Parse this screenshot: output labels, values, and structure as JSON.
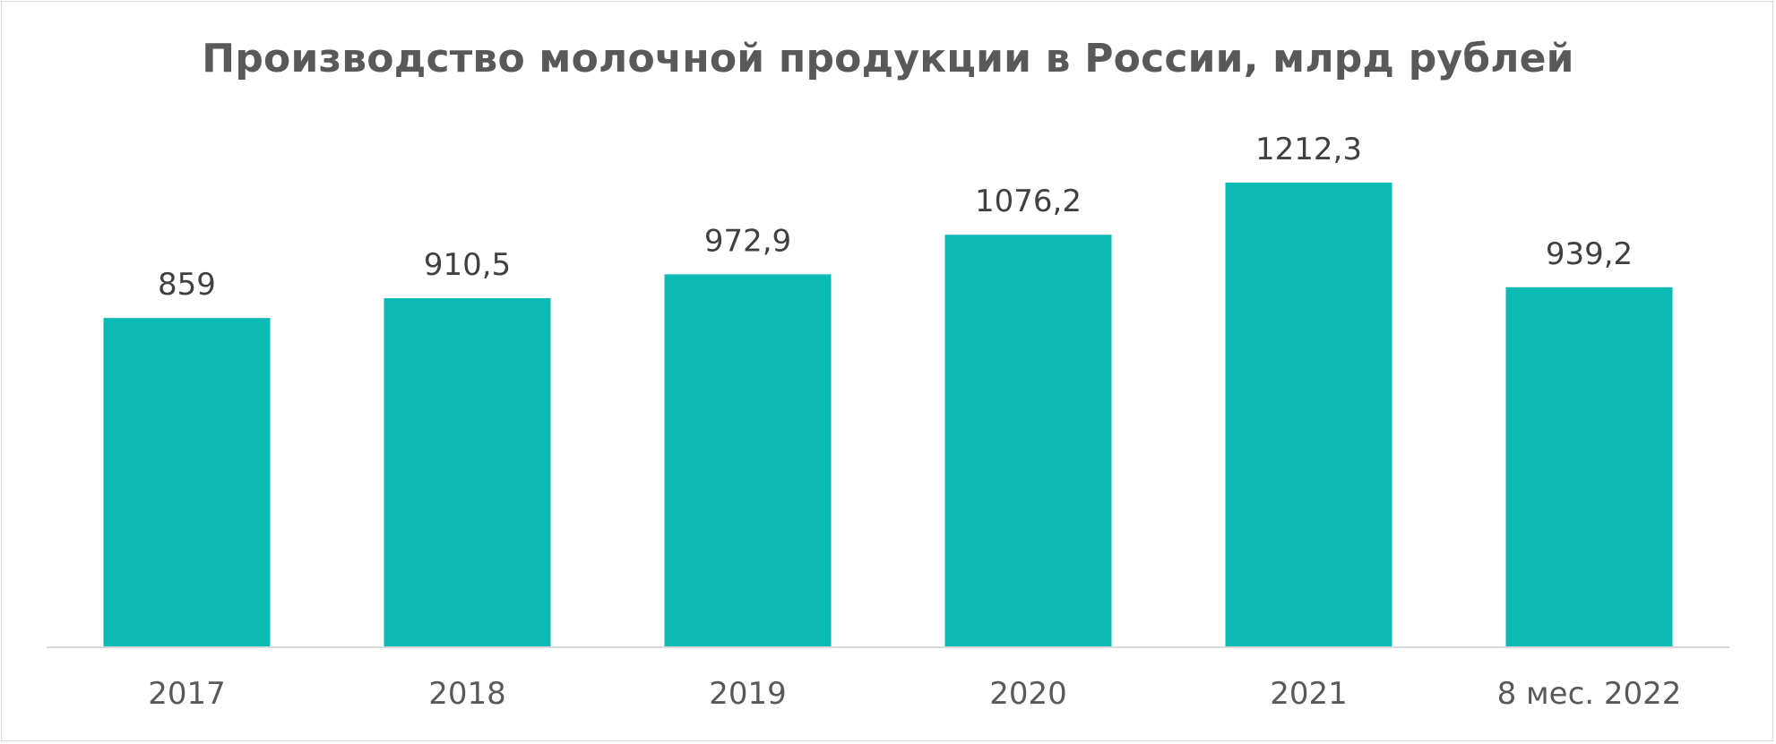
{
  "chart_data": {
    "type": "bar",
    "title": "Производство молочной продукции в России, млрд рублей",
    "categories": [
      "2017",
      "2018",
      "2019",
      "2020",
      "2021",
      "8 мес. 2022"
    ],
    "values": [
      859,
      910.5,
      972.9,
      1076.2,
      1212.3,
      939.2
    ],
    "data_labels": [
      "859",
      "910,5",
      "972,9",
      "1076,2",
      "1212,3",
      "939,2"
    ],
    "xlabel": "",
    "ylabel": "",
    "ylim": [
      0,
      1300
    ],
    "grid": false,
    "legend": "none",
    "bar_color": "#0BBAB5",
    "axis_color": "#D9D9D9"
  }
}
